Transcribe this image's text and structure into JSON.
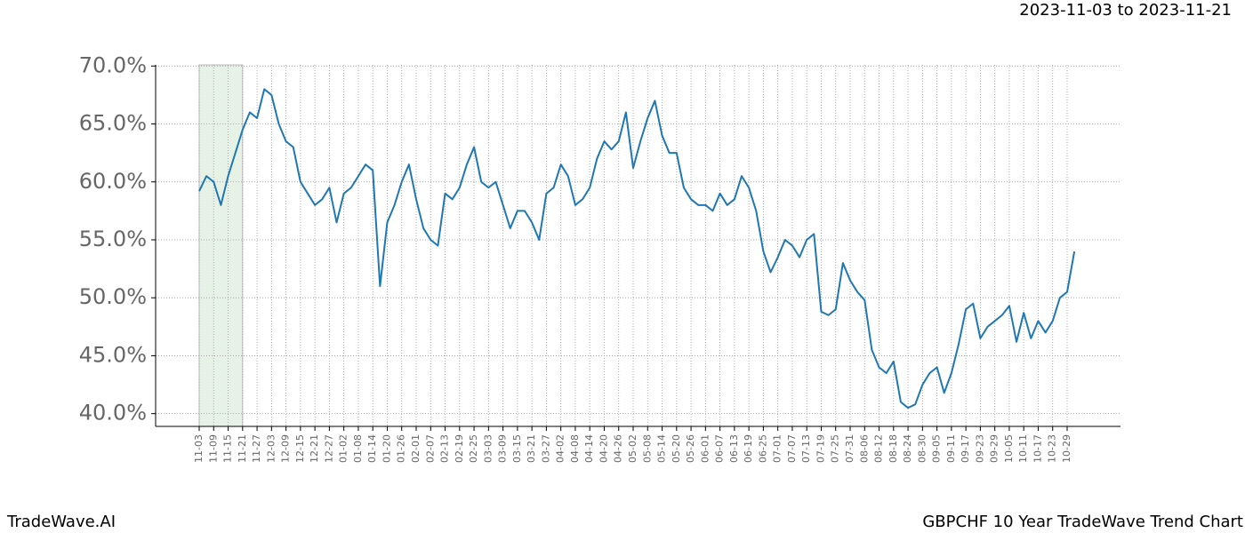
{
  "chart_data": {
    "type": "line",
    "title": "GBPCHF 10 Year TradeWave Trend Chart",
    "subtitle": "2023-11-03 to 2023-11-21",
    "brand": "TradeWave.AI",
    "highlight": [
      "11-03",
      "11-21"
    ],
    "highlight_color": "#e6f2e6",
    "categories": [
      "11-03",
      null,
      "11-09",
      null,
      "11-15",
      null,
      "11-21",
      null,
      "11-27",
      null,
      "12-03",
      null,
      "12-09",
      null,
      "12-15",
      null,
      "12-21",
      null,
      "12-27",
      null,
      "01-02",
      null,
      "01-08",
      null,
      "01-14",
      null,
      "01-20",
      null,
      "01-26",
      null,
      "02-01",
      null,
      "02-07",
      null,
      "02-13",
      null,
      "02-19",
      null,
      "02-25",
      null,
      "03-03",
      null,
      "03-09",
      null,
      "03-15",
      null,
      "03-21",
      null,
      "03-27",
      null,
      "04-02",
      null,
      "04-08",
      null,
      "04-14",
      null,
      "04-20",
      null,
      "04-26",
      null,
      "05-02",
      null,
      "05-08",
      null,
      "05-14",
      null,
      "05-20",
      null,
      "05-26",
      null,
      "06-01",
      null,
      "06-07",
      null,
      "06-13",
      null,
      "06-19",
      null,
      "06-25",
      null,
      "07-01",
      null,
      "07-07",
      null,
      "07-13",
      null,
      "07-19",
      null,
      "07-25",
      null,
      "07-31",
      null,
      "08-06",
      null,
      "08-12",
      null,
      "08-18",
      null,
      "08-24",
      null,
      "08-30",
      null,
      "09-05",
      null,
      "09-11",
      null,
      "09-17",
      null,
      "09-23",
      null,
      "09-29",
      null,
      "10-05",
      null,
      "10-11",
      null,
      "10-17",
      null,
      "10-23",
      null,
      "10-29",
      null
    ],
    "series": [
      {
        "color": "#1f77b4",
        "values": [
          59.2,
          60.5,
          60,
          58,
          60.5,
          62.5,
          64.5,
          66,
          65.5,
          68,
          67.5,
          65,
          63.5,
          63,
          60,
          59,
          58,
          58.5,
          59.5,
          56.5,
          59,
          59.5,
          60.5,
          61.5,
          61,
          51,
          56.5,
          58,
          60,
          61.5,
          58.5,
          56,
          55,
          54.5,
          59,
          58.5,
          59.5,
          61.5,
          63,
          60,
          59.5,
          60,
          58,
          56,
          57.5,
          57.5,
          56.5,
          55,
          59,
          59.5,
          61.5,
          60.5,
          58,
          58.5,
          59.5,
          62,
          63.5,
          62.8,
          63.5,
          66,
          61.2,
          63.5,
          65.5,
          67,
          64,
          62.5,
          62.5,
          59.5,
          58.5,
          58,
          58,
          57.5,
          59,
          58,
          58.5,
          60.5,
          59.5,
          57.5,
          54,
          52.2,
          53.5,
          55,
          54.5,
          53.5,
          55,
          55.5,
          48.8,
          48.5,
          49,
          53,
          51.5,
          50.5,
          49.8,
          45.5,
          44,
          43.5,
          44.5,
          41,
          40.5,
          40.8,
          42.5,
          43.5,
          44,
          41.8,
          43.5,
          46,
          49,
          49.5,
          46.5,
          47.5,
          48,
          48.5,
          49.3,
          46.2,
          48.7,
          46.5,
          48,
          47,
          48,
          50,
          50.5,
          54
        ]
      }
    ],
    "ylim": [
      38.9,
      70.1
    ],
    "yticks": [
      {
        "value": 40,
        "label": "40.0%"
      },
      {
        "value": 45,
        "label": "45.0%"
      },
      {
        "value": 50,
        "label": "50.0%"
      },
      {
        "value": 55,
        "label": "55.0%"
      },
      {
        "value": 60,
        "label": "60.0%"
      },
      {
        "value": 65,
        "label": "65.0%"
      },
      {
        "value": 70,
        "label": "70.0%"
      }
    ],
    "grid": true
  }
}
